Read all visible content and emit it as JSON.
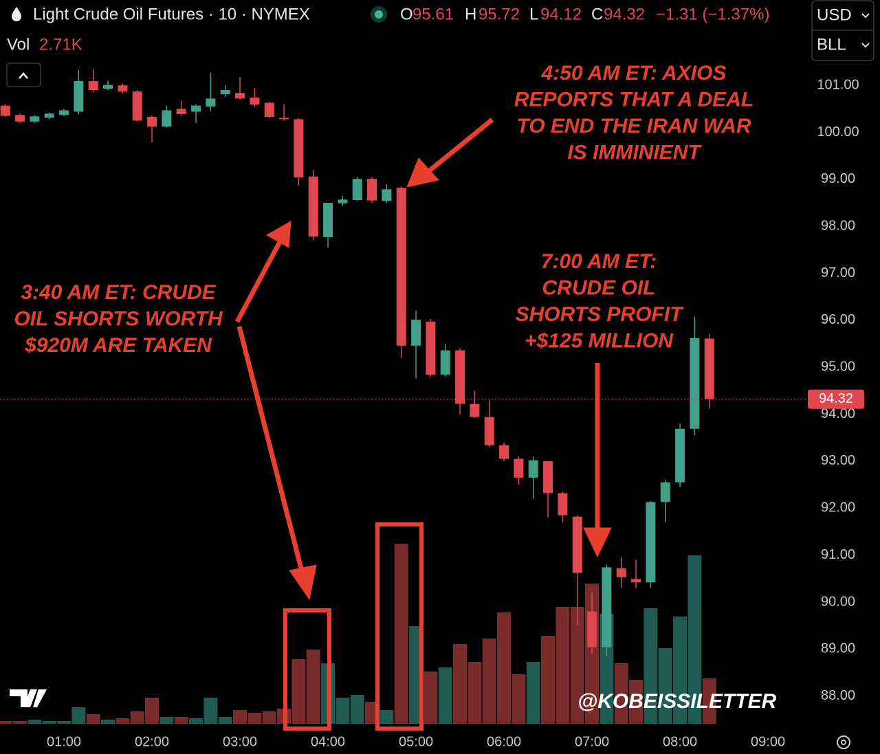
{
  "chart_data": {
    "type": "candlestick",
    "title": "Light Crude Oil Futures · 10 · NYMEX",
    "open_label": "O",
    "high_label": "H",
    "low_label": "L",
    "close_label": "C",
    "change": "−1.31 (−1.37%)",
    "volume_title": "Vol",
    "volume_label": "2.71K",
    "currency": "USD",
    "unit": "BLL",
    "watermark": "@KOBEISSILETTER",
    "up_color": "#40a08a",
    "down_color": "#e0474f",
    "up_volume_color": "#1f5a53",
    "down_volume_color": "#7a2c2c",
    "x": [
      20,
      30,
      40,
      50,
      60,
      70,
      80,
      90,
      100,
      110,
      120,
      130,
      140,
      150,
      160,
      170,
      180,
      190,
      200,
      210,
      220,
      230,
      240,
      250,
      260,
      270,
      280,
      290,
      300,
      310,
      320,
      330,
      340,
      350,
      360,
      370,
      380,
      390,
      400,
      410,
      420,
      430,
      440,
      450,
      460,
      470,
      480,
      490,
      500
    ],
    "xlim": [
      16.4,
      564.8
    ],
    "xticks": [
      {
        "value": 60,
        "label": "01:00"
      },
      {
        "value": 120,
        "label": "02:00"
      },
      {
        "value": 180,
        "label": "03:00"
      },
      {
        "value": 240,
        "label": "04:00"
      },
      {
        "value": 300,
        "label": "05:00"
      },
      {
        "value": 360,
        "label": "06:00"
      },
      {
        "value": 420,
        "label": "07:00"
      },
      {
        "value": 480,
        "label": "08:00"
      },
      {
        "value": 540,
        "label": "09:00"
      }
    ],
    "ylim": [
      87.41,
      101.53
    ],
    "yticks": [
      {
        "value": 88,
        "label": "88.00"
      },
      {
        "value": 89,
        "label": "89.00"
      },
      {
        "value": 90,
        "label": "90.00"
      },
      {
        "value": 91,
        "label": "91.00"
      },
      {
        "value": 92,
        "label": "92.00"
      },
      {
        "value": 93,
        "label": "93.00"
      },
      {
        "value": 94,
        "label": "94.00"
      },
      {
        "value": 95,
        "label": "95.00"
      },
      {
        "value": 96,
        "label": "96.00"
      },
      {
        "value": 97,
        "label": "97.00"
      },
      {
        "value": 98,
        "label": "98.00"
      },
      {
        "value": 99,
        "label": "99.00"
      },
      {
        "value": 100,
        "label": "100.00"
      },
      {
        "value": 101,
        "label": "101.00"
      }
    ],
    "candles": {
      "open": [
        100.57,
        100.37,
        100.23,
        100.31,
        100.37,
        100.44,
        101.09,
        100.93,
        101.0,
        100.87,
        100.33,
        100.12,
        100.5,
        100.44,
        100.55,
        100.81,
        100.84,
        100.74,
        100.63,
        100.31,
        100.28,
        99.06,
        97.77,
        98.49,
        98.56,
        99.01,
        98.54,
        98.82,
        95.46,
        95.97,
        94.84,
        95.36,
        94.22,
        93.94,
        93.34,
        93.05,
        92.65,
        93.0,
        92.32,
        91.82,
        89.8,
        89.04,
        90.72,
        90.49,
        90.42,
        92.13,
        92.55,
        93.69,
        95.61
      ],
      "high": [
        100.6,
        100.4,
        100.37,
        100.42,
        100.5,
        101.33,
        101.35,
        101.1,
        101.04,
        100.9,
        100.36,
        100.57,
        100.67,
        100.6,
        101.27,
        101.0,
        101.18,
        100.95,
        100.65,
        100.6,
        100.3,
        99.2,
        98.5,
        98.65,
        99.05,
        99.05,
        98.9,
        98.85,
        96.2,
        96.03,
        95.5,
        95.4,
        94.5,
        94.3,
        93.4,
        93.1,
        93.1,
        93.0,
        92.35,
        91.85,
        90.2,
        90.8,
        90.95,
        90.9,
        92.15,
        92.6,
        93.8,
        96.08,
        95.72
      ],
      "low": [
        100.33,
        100.2,
        100.2,
        100.28,
        100.35,
        100.38,
        100.85,
        100.9,
        100.83,
        100.23,
        99.79,
        100.1,
        100.35,
        100.2,
        100.45,
        100.75,
        100.7,
        100.55,
        100.3,
        100.25,
        98.87,
        97.7,
        97.55,
        98.44,
        98.54,
        98.5,
        98.5,
        95.2,
        94.76,
        94.8,
        94.8,
        94.0,
        93.92,
        93.3,
        93.0,
        92.5,
        92.2,
        91.8,
        91.7,
        89.5,
        88.9,
        88.85,
        90.3,
        90.3,
        90.3,
        91.7,
        92.45,
        93.55,
        94.12
      ],
      "close": [
        100.35,
        100.23,
        100.34,
        100.4,
        100.47,
        101.09,
        100.9,
        101.01,
        100.87,
        100.25,
        100.12,
        100.47,
        100.39,
        100.57,
        100.72,
        100.9,
        100.72,
        100.59,
        100.33,
        100.28,
        99.04,
        97.78,
        98.5,
        98.57,
        99.01,
        98.55,
        98.79,
        95.46,
        96.01,
        94.84,
        95.36,
        94.22,
        93.94,
        93.34,
        93.05,
        92.65,
        93.02,
        92.32,
        91.85,
        90.62,
        89.04,
        90.74,
        90.53,
        90.42,
        92.13,
        92.55,
        93.69,
        95.62,
        94.32
      ]
    },
    "volume": [
      164,
      164,
      246,
      164,
      164,
      984,
      574,
      246,
      328,
      738,
      1558,
      410,
      410,
      328,
      1558,
      410,
      820,
      656,
      738,
      902,
      3854,
      4428,
      3608,
      1558,
      1722,
      1312,
      820,
      10742,
      5822,
      3116,
      3362,
      4756,
      3690,
      5084,
      6642,
      2952,
      3690,
      5248,
      6970,
      6970,
      8364,
      6560,
      3608,
      2624,
      6888,
      4510,
      6396,
      10045,
      2710
    ],
    "annotations": [
      {
        "lines": [
          "4:50 AM ET: AXIOS",
          "REPORTS THAT A DEAL",
          "TO END THE IRAN WAR",
          "IS IMMINIENT"
        ]
      },
      {
        "lines": [
          "3:40 AM ET: CRUDE",
          "OIL SHORTS WORTH",
          "$920M ARE TAKEN"
        ]
      },
      {
        "lines": [
          "7:00 AM ET:",
          "CRUDE OIL",
          "SHORTS PROFIT",
          "+$125 MILLION"
        ]
      }
    ]
  }
}
